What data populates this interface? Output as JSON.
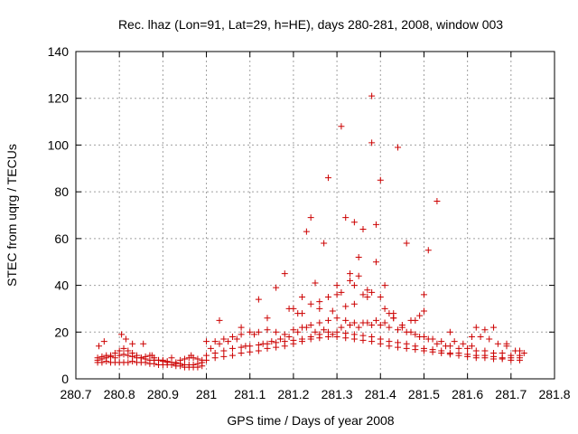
{
  "chart_data": {
    "type": "scatter",
    "title": "Rec. lhaz (Lon=91, Lat=29, h=HE), days 280-281, 2008, window 003",
    "xlabel": "GPS time / Days of year 2008",
    "ylabel": "STEC from uqrg / TECUs",
    "xlim": [
      280.7,
      281.8
    ],
    "ylim": [
      0,
      140
    ],
    "xticks": [
      280.7,
      280.8,
      280.9,
      281,
      281.1,
      281.2,
      281.3,
      281.4,
      281.5,
      281.6,
      281.7,
      281.8
    ],
    "xtick_labels": [
      "280.7",
      "280.8",
      "280.9",
      "281",
      "281.1",
      "281.2",
      "281.3",
      "281.4",
      "281.5",
      "281.6",
      "281.7",
      "281.8"
    ],
    "yticks": [
      0,
      20,
      40,
      60,
      80,
      100,
      120,
      140
    ],
    "ytick_labels": [
      "0",
      "20",
      "40",
      "60",
      "80",
      "100",
      "120",
      "140"
    ],
    "grid": true,
    "marker": "+",
    "color": "#cc0000",
    "series": [
      {
        "x": [
          280.75,
          280.76,
          280.77,
          280.78,
          280.79,
          280.8,
          280.81,
          280.82,
          280.83,
          280.84,
          280.85,
          280.86,
          280.87,
          280.88,
          280.89,
          280.9,
          280.91,
          280.92,
          280.93,
          280.94,
          280.95,
          280.96,
          280.97,
          280.98,
          280.99,
          280.75,
          280.76,
          280.77,
          280.78,
          280.79,
          280.8,
          280.81,
          280.82,
          280.83,
          280.84,
          280.85,
          280.86,
          280.87,
          280.88,
          280.89,
          280.9,
          280.91,
          280.92,
          280.93,
          280.94,
          280.95,
          280.96,
          280.97,
          280.98,
          280.99,
          280.75,
          280.76,
          280.77,
          280.78,
          280.79,
          280.8,
          280.81,
          280.82,
          280.83,
          280.84,
          280.85,
          280.86,
          280.87,
          280.88,
          280.89,
          280.9,
          280.91,
          280.92,
          280.93,
          280.94,
          280.95,
          280.96,
          280.97,
          280.98,
          280.99,
          280.753,
          280.765,
          280.805,
          280.815,
          280.83,
          280.855,
          280.875,
          280.92,
          280.965
        ],
        "y": [
          9,
          9.5,
          10,
          9.5,
          9,
          10,
          10.5,
          10,
          9.5,
          9,
          9,
          8.5,
          8,
          8,
          8,
          7.5,
          7,
          7,
          6.5,
          6.5,
          6,
          6,
          6,
          6.5,
          7,
          7,
          7,
          7.5,
          7,
          7,
          7,
          7,
          7,
          7.5,
          7,
          7,
          7,
          6.5,
          6.5,
          6,
          6,
          6,
          6,
          5.5,
          5.5,
          5,
          5,
          5,
          5,
          5.5,
          8,
          8.5,
          9,
          10,
          11,
          12,
          13,
          12,
          11,
          10,
          9,
          9.5,
          10,
          9,
          8,
          8,
          7.5,
          7,
          7,
          8,
          8.5,
          9,
          9,
          8.5,
          8,
          14,
          16,
          19,
          17,
          15,
          15,
          10,
          9,
          10
        ]
      },
      {
        "x": [
          281.0,
          281.02,
          281.04,
          281.06,
          281.08,
          281.1,
          281.12,
          281.14,
          281.16,
          281.18,
          281.2,
          281.22,
          281.24,
          281.26,
          281.28,
          281.3,
          281.32,
          281.34,
          281.36,
          281.38,
          281.4,
          281.42,
          281.44,
          281.46,
          281.48,
          281.5,
          281.52,
          281.54,
          281.56,
          281.58,
          281.6,
          281.62,
          281.64,
          281.66,
          281.68,
          281.7,
          281.72,
          281.0,
          281.02,
          281.04,
          281.06,
          281.08,
          281.1,
          281.12,
          281.14,
          281.16,
          281.18,
          281.2,
          281.22,
          281.24,
          281.26,
          281.28,
          281.3,
          281.32,
          281.34,
          281.36,
          281.38,
          281.4,
          281.42,
          281.44,
          281.46,
          281.48,
          281.5,
          281.52,
          281.54,
          281.56,
          281.58,
          281.6,
          281.62,
          281.64,
          281.66,
          281.68,
          281.7,
          281.72,
          281.0,
          281.02,
          281.04,
          281.06,
          281.08,
          281.1,
          281.12,
          281.14,
          281.16,
          281.18,
          281.2,
          281.22,
          281.24,
          281.26,
          281.28,
          281.3,
          281.32,
          281.34,
          281.36,
          281.38,
          281.4,
          281.42,
          281.44,
          281.46,
          281.48,
          281.5,
          281.52,
          281.54,
          281.56,
          281.58,
          281.6,
          281.62,
          281.64,
          281.66,
          281.68,
          281.7,
          281.72,
          281.01,
          281.03,
          281.05,
          281.07,
          281.09,
          281.11,
          281.13,
          281.15,
          281.17,
          281.19,
          281.21,
          281.23,
          281.25,
          281.27,
          281.29,
          281.31,
          281.33,
          281.35,
          281.37,
          281.39,
          281.41,
          281.43,
          281.45,
          281.47,
          281.49,
          281.51,
          281.53,
          281.55,
          281.57,
          281.59,
          281.61,
          281.63,
          281.65,
          281.67,
          281.69,
          281.71,
          281.73
        ],
        "y": [
          8,
          9,
          9.5,
          10,
          11,
          11.5,
          12,
          13,
          13.5,
          14,
          15,
          16,
          17,
          17.5,
          18,
          18,
          17.5,
          17,
          16.5,
          16,
          15,
          14,
          13.5,
          13,
          12.5,
          12,
          11.5,
          11,
          10.5,
          10,
          9.5,
          9,
          9,
          8.5,
          8.5,
          8,
          8,
          10,
          11,
          12,
          13,
          13.5,
          14,
          14.5,
          15,
          15.5,
          16,
          16.5,
          17,
          18,
          19,
          20,
          20,
          19.5,
          19,
          18.5,
          18,
          17,
          16,
          15.5,
          15,
          14,
          13,
          12.5,
          12,
          11,
          11,
          10.5,
          10,
          10,
          9.5,
          9,
          9,
          9,
          16,
          16,
          17,
          18,
          19,
          20,
          20,
          21,
          20,
          19,
          21,
          22,
          23,
          24,
          25,
          26,
          25,
          24,
          24,
          23,
          23,
          22,
          21,
          20,
          19,
          18,
          17,
          16,
          14,
          13,
          13,
          12,
          12,
          11,
          11,
          10,
          10,
          13,
          15,
          16,
          17,
          14,
          19,
          15,
          16,
          17,
          18,
          20,
          22,
          20,
          21,
          19,
          22,
          23,
          22,
          24,
          25,
          24,
          26,
          22,
          20,
          18,
          17,
          15,
          14,
          16,
          15,
          14,
          18,
          17,
          15,
          14,
          12,
          11
        ]
      },
      {
        "x": [
          281.03,
          281.08,
          281.12,
          281.14,
          281.16,
          281.18,
          281.19,
          281.21,
          281.22,
          281.23,
          281.24,
          281.25,
          281.26,
          281.27,
          281.28,
          281.29,
          281.3,
          281.31,
          281.32,
          281.33,
          281.34,
          281.34,
          281.35,
          281.36,
          281.37,
          281.38,
          281.38,
          281.39,
          281.4,
          281.41,
          281.43,
          281.44,
          281.46,
          281.48,
          281.5,
          281.51,
          281.53,
          281.56,
          281.61,
          281.62,
          281.64,
          281.66,
          281.69,
          281.72
        ],
        "y": [
          25,
          22,
          34,
          26,
          39,
          45,
          30,
          28,
          35,
          63,
          69,
          41,
          33,
          58,
          86,
          29,
          40,
          108,
          69,
          45,
          32,
          67,
          52,
          64,
          35,
          121,
          101,
          66,
          85,
          40,
          28,
          99,
          58,
          25,
          36,
          55,
          76,
          20,
          18,
          22,
          21,
          22,
          15,
          12
        ]
      },
      {
        "x": [
          281.2,
          281.22,
          281.24,
          281.26,
          281.28,
          281.3,
          281.31,
          281.32,
          281.33,
          281.34,
          281.35,
          281.36,
          281.37,
          281.38,
          281.39,
          281.4,
          281.41,
          281.42,
          281.43,
          281.45,
          281.47,
          281.49,
          281.5
        ],
        "y": [
          30,
          28,
          32,
          30,
          35,
          36,
          37,
          31,
          42,
          40,
          44,
          36,
          38,
          37,
          50,
          35,
          30,
          28,
          26,
          23,
          25,
          27,
          29
        ]
      }
    ]
  }
}
